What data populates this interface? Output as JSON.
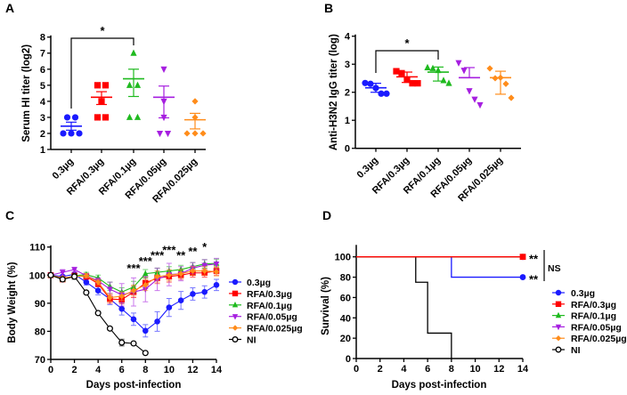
{
  "colors": {
    "0.3µg": "#1a1aff",
    "RFA/0.3µg": "#ff0000",
    "RFA/0.1µg": "#1fba1f",
    "RFA/0.05µg": "#a61fe0",
    "RFA/0.025µg": "#ff8c1a",
    "NI": "#000000"
  },
  "chart_data": [
    {
      "panel": "A",
      "type": "scatter",
      "ylabel": "Serum HI titer (log2)",
      "ylim": [
        1,
        8
      ],
      "yticks": [
        1,
        2,
        3,
        4,
        5,
        6,
        7,
        8
      ],
      "categories": [
        "0.3µg",
        "RFA/0.3µg",
        "RFA/0.1µg",
        "RFA/0.05µg",
        "RFA/0.025µg"
      ],
      "series": [
        {
          "name": "0.3µg",
          "marker": "circle",
          "points": [
            3,
            3,
            2,
            2,
            2
          ],
          "mean": 2.45,
          "err_low": 2.2,
          "err_high": 2.7
        },
        {
          "name": "RFA/0.3µg",
          "marker": "square",
          "points": [
            5,
            5,
            4,
            3,
            3
          ],
          "mean": 4.25,
          "err_low": 3.8,
          "err_high": 4.6
        },
        {
          "name": "RFA/0.1µg",
          "marker": "triangle-up",
          "points": [
            7,
            5,
            5,
            3,
            3
          ],
          "mean": 5.4,
          "err_low": 4.3,
          "err_high": 6.0
        },
        {
          "name": "RFA/0.05µg",
          "marker": "triangle-down",
          "points": [
            6,
            4,
            3,
            2,
            2
          ],
          "mean": 4.25,
          "err_low": 2.97,
          "err_high": 4.95
        },
        {
          "name": "RFA/0.025µg",
          "marker": "diamond",
          "points": [
            4,
            3,
            2,
            2,
            2
          ],
          "mean": 2.85,
          "err_low": 2.28,
          "err_high": 3.25
        }
      ],
      "significance": [
        {
          "from": "0.3µg",
          "to": "RFA/0.1µg",
          "label": "*"
        }
      ]
    },
    {
      "panel": "B",
      "type": "scatter",
      "ylabel": "Anti-H3N2 IgG titer (log)",
      "ylim": [
        0,
        4
      ],
      "yticks": [
        0,
        1,
        2,
        3,
        4
      ],
      "categories": [
        "0.3µg",
        "RFA/0.3µg",
        "RFA/0.1µg",
        "RFA/0.05µg",
        "RFA/0.025µg"
      ],
      "series": [
        {
          "name": "0.3µg",
          "marker": "circle",
          "points": [
            2.33,
            2.3,
            2.15,
            1.95,
            1.95
          ],
          "mean": 2.16,
          "err_low": 2.0,
          "err_high": 2.32
        },
        {
          "name": "RFA/0.3µg",
          "marker": "square",
          "points": [
            2.75,
            2.68,
            2.45,
            2.32,
            2.32
          ],
          "mean": 2.55,
          "err_low": 2.35,
          "err_high": 2.72
        },
        {
          "name": "RFA/0.1µg",
          "marker": "triangle-up",
          "points": [
            2.88,
            2.85,
            2.78,
            2.42,
            2.32
          ],
          "mean": 2.72,
          "err_low": 2.4,
          "err_high": 2.9
        },
        {
          "name": "RFA/0.05µg",
          "marker": "triangle-down",
          "points": [
            3.05,
            2.78,
            2.05,
            1.75,
            1.55
          ],
          "mean": 2.52,
          "err_low": 2.52,
          "err_high": 2.88
        },
        {
          "name": "RFA/0.025µg",
          "marker": "diamond",
          "points": [
            2.85,
            2.5,
            2.52,
            2.3,
            1.8
          ],
          "mean": 2.52,
          "err_low": 1.93,
          "err_high": 2.75
        }
      ],
      "significance": [
        {
          "from": "0.3µg",
          "to": "RFA/0.1µg",
          "label": "*"
        }
      ]
    },
    {
      "panel": "C",
      "type": "line",
      "xlabel": "Days post-infection",
      "ylabel": "Body Weight (%)",
      "xlim": [
        0,
        14
      ],
      "ylim": [
        70,
        110
      ],
      "xticks": [
        0,
        2,
        4,
        6,
        8,
        10,
        12,
        14
      ],
      "yticks": [
        70,
        80,
        90,
        100,
        110
      ],
      "legend": "right",
      "series": [
        {
          "name": "0.3µg",
          "marker": "circle",
          "x": [
            0,
            1,
            2,
            3,
            4,
            5,
            6,
            7,
            8,
            9,
            10,
            11,
            12,
            13,
            14
          ],
          "y": [
            100,
            99.5,
            100.3,
            97.5,
            94.5,
            91.5,
            88,
            84.3,
            80.2,
            83.5,
            88.5,
            91,
            93.3,
            94,
            96.5
          ],
          "err": [
            0.3,
            0.5,
            0.5,
            1,
            1.5,
            2,
            2.2,
            2.2,
            2.2,
            3.5,
            3.2,
            3.2,
            2.2,
            2.2,
            2
          ]
        },
        {
          "name": "RFA/0.3µg",
          "marker": "square",
          "x": [
            0,
            1,
            2,
            3,
            4,
            5,
            6,
            7,
            8,
            9,
            10,
            11,
            12,
            13,
            14
          ],
          "y": [
            100,
            98.5,
            99.8,
            99.5,
            97,
            91.5,
            91.3,
            94,
            97.2,
            99,
            99.5,
            100,
            100.8,
            100.8,
            101.5
          ],
          "err": [
            0.3,
            0.5,
            0.5,
            1,
            1.2,
            1.5,
            1.5,
            2,
            2,
            2,
            2,
            1.5,
            1.5,
            1.5,
            1.5
          ]
        },
        {
          "name": "RFA/0.1µg",
          "marker": "triangle-up",
          "x": [
            0,
            1,
            2,
            3,
            4,
            5,
            6,
            7,
            8,
            9,
            10,
            11,
            12,
            13,
            14
          ],
          "y": [
            100,
            98.5,
            99.8,
            100.2,
            99,
            96,
            94,
            95.8,
            100.5,
            101,
            101.5,
            102,
            103,
            104,
            104.2
          ],
          "err": [
            0.3,
            0.5,
            0.5,
            0.8,
            1,
            1.5,
            1.5,
            2,
            1.5,
            1.5,
            1.5,
            1.5,
            1.5,
            1.5,
            1.5
          ]
        },
        {
          "name": "RFA/0.05µg",
          "marker": "triangle-down",
          "x": [
            0,
            1,
            2,
            3,
            4,
            5,
            6,
            7,
            8,
            9,
            10,
            11,
            12,
            13,
            14
          ],
          "y": [
            100,
            101,
            102,
            99.8,
            98,
            95,
            93,
            94,
            95,
            98.5,
            100.2,
            100.5,
            102.5,
            103.5,
            104
          ],
          "err": [
            0.3,
            1,
            0.8,
            0.8,
            1,
            2.5,
            4,
            5,
            4.5,
            4,
            4,
            2.5,
            2,
            2,
            2
          ]
        },
        {
          "name": "RFA/0.025µg",
          "marker": "diamond",
          "x": [
            0,
            1,
            2,
            3,
            4,
            5,
            6,
            7,
            8,
            9,
            10,
            11,
            12,
            13,
            14
          ],
          "y": [
            100,
            99,
            99.5,
            99.8,
            97.5,
            92,
            92.5,
            94.5,
            96.5,
            99.5,
            100,
            100.5,
            101.5,
            101.5,
            101.2
          ],
          "err": [
            0.3,
            0.5,
            0.5,
            0.8,
            1,
            1.5,
            1.5,
            2,
            2,
            2,
            2,
            1.5,
            1.5,
            1.5,
            1.5
          ]
        },
        {
          "name": "NI",
          "marker": "open-circle",
          "x": [
            0,
            1,
            2,
            3,
            4,
            5,
            6,
            7,
            8
          ],
          "y": [
            100,
            98.5,
            99.5,
            93.8,
            86.5,
            81,
            76,
            75.7,
            72.3
          ],
          "err": [
            0.3,
            0.5,
            1,
            0.5,
            0.5,
            0.5,
            1.2,
            0.3,
            0.3
          ]
        }
      ],
      "significance": [
        {
          "x": 7,
          "y": 103,
          "label": "***"
        },
        {
          "x": 8,
          "y": 105.5,
          "label": "***"
        },
        {
          "x": 9,
          "y": 107.5,
          "label": "***"
        },
        {
          "x": 10,
          "y": 109.5,
          "label": "***"
        },
        {
          "x": 11,
          "y": 107.5,
          "label": "**"
        },
        {
          "x": 12,
          "y": 109,
          "label": "**"
        },
        {
          "x": 13,
          "y": 110.5,
          "label": "*"
        }
      ]
    },
    {
      "panel": "D",
      "type": "line",
      "xlabel": "Days post-infection",
      "ylabel": "Survival (%)",
      "xlim": [
        0,
        14
      ],
      "ylim": [
        0,
        110
      ],
      "xticks": [
        0,
        2,
        4,
        6,
        8,
        10,
        12,
        14
      ],
      "yticks": [
        0,
        20,
        40,
        60,
        80,
        100
      ],
      "legend": "right",
      "series": [
        {
          "name": "0.3µg",
          "marker": "circle",
          "steps": [
            [
              0,
              100
            ],
            [
              8,
              80
            ],
            [
              14,
              80
            ]
          ]
        },
        {
          "name": "RFA/0.3µg",
          "marker": "square",
          "steps": [
            [
              0,
              100
            ],
            [
              14,
              100
            ]
          ]
        },
        {
          "name": "RFA/0.1µg",
          "marker": "triangle-up",
          "steps": [
            [
              0,
              100
            ],
            [
              14,
              100
            ]
          ]
        },
        {
          "name": "RFA/0.05µg",
          "marker": "triangle-down",
          "steps": [
            [
              0,
              100
            ],
            [
              14,
              100
            ]
          ]
        },
        {
          "name": "RFA/0.025µg",
          "marker": "diamond",
          "steps": [
            [
              0,
              100
            ],
            [
              14,
              100
            ]
          ]
        },
        {
          "name": "NI",
          "marker": "open-circle",
          "steps": [
            [
              0,
              100
            ],
            [
              5,
              75
            ],
            [
              6,
              25
            ],
            [
              8,
              0
            ]
          ]
        }
      ],
      "annotations": {
        "rfa_label": "**",
        "low_dose_label": "**",
        "bracket_label": "NS"
      }
    }
  ]
}
